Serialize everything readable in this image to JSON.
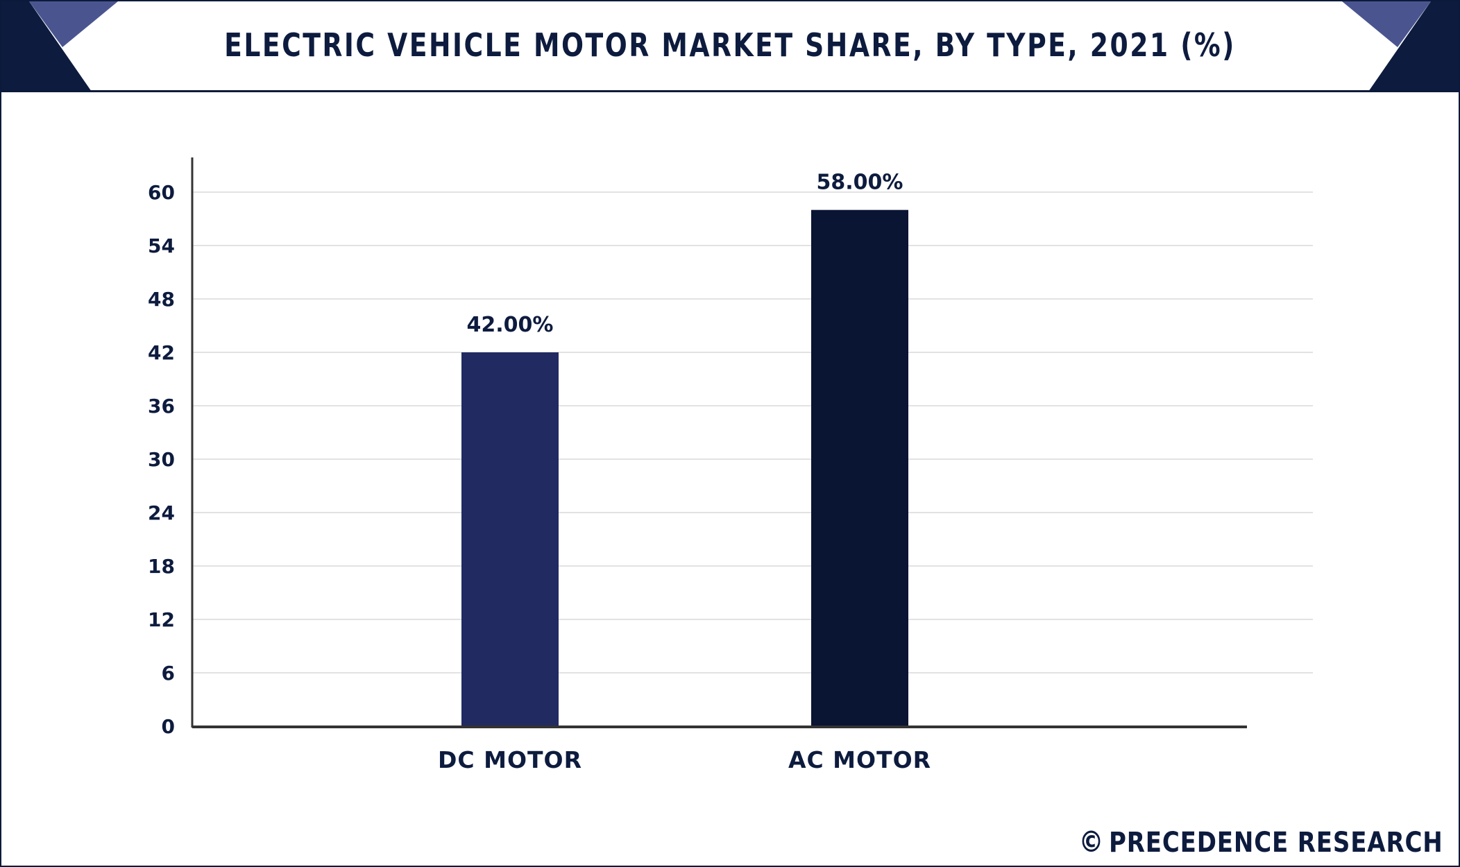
{
  "title": "ELECTRIC VEHICLE MOTOR MARKET SHARE, BY TYPE, 2021 (%)",
  "brand": {
    "copyright_symbol": "©",
    "name": "PRECEDENCE RESEARCH"
  },
  "colors": {
    "title_text": "#0d1b3e",
    "frame": "#0b1a3a",
    "corner_dark": "#0d1b3e",
    "corner_light": "#4a5590",
    "dc_motor_bar": "#212a61",
    "ac_motor_bar": "#0a1433",
    "gridline": "#e2e2e2",
    "axis": "#333333"
  },
  "chart_data": {
    "type": "bar",
    "title": "ELECTRIC VEHICLE MOTOR MARKET SHARE, BY TYPE, 2021 (%)",
    "categories": [
      "DC MOTOR",
      "AC MOTOR"
    ],
    "values": [
      42.0,
      58.0
    ],
    "value_labels": [
      "42.00%",
      "58.00%"
    ],
    "bar_colors": [
      "#212a61",
      "#0a1433"
    ],
    "xlabel": "",
    "ylabel": "",
    "ylim": [
      0,
      60
    ],
    "yticks": [
      0,
      6,
      12,
      18,
      24,
      30,
      36,
      42,
      48,
      54,
      60
    ],
    "grid": true,
    "legend": "none"
  }
}
